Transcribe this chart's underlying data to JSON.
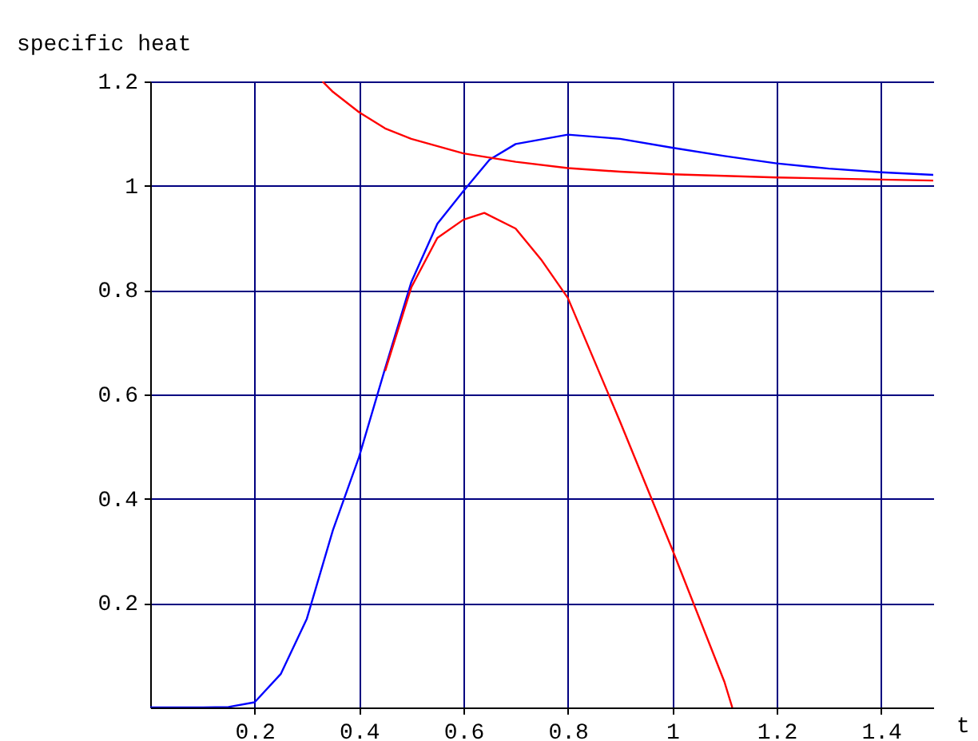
{
  "chart_data": {
    "type": "line",
    "xlabel": "t",
    "ylabel": "specific heat",
    "xlim": [
      0,
      1.5
    ],
    "ylim": [
      0,
      1.2
    ],
    "xticks": [
      0.2,
      0.4,
      0.6,
      0.8,
      {
        "value": 1,
        "label": "1"
      },
      1.2,
      1.4
    ],
    "yticks": [
      0.2,
      0.4,
      0.6,
      0.8,
      {
        "value": 1,
        "label": "1"
      },
      1.2
    ],
    "grid": true,
    "line_style": "solid",
    "series": [
      {
        "color": "#0000ff",
        "x": [
          0,
          0.1,
          0.15,
          0.2,
          0.25,
          0.3,
          0.35,
          0.4,
          0.45,
          0.5,
          0.55,
          0.6,
          0.65,
          0.7,
          0.8,
          0.9,
          1,
          1.1,
          1.2,
          1.3,
          1.4,
          1.5
        ],
        "values": [
          0,
          0,
          0.001,
          0.01,
          0.064,
          0.17,
          0.34,
          0.48,
          0.65,
          0.815,
          0.927,
          0.99,
          1.05,
          1.08,
          1.098,
          1.09,
          1.073,
          1.057,
          1.043,
          1.033,
          1.026,
          1.021
        ]
      },
      {
        "color": "#ff0000",
        "x": [
          0.45,
          0.5,
          0.55,
          0.6,
          0.64,
          0.7,
          0.75,
          0.8,
          0.9,
          1,
          1.1,
          1.115
        ],
        "values": [
          0.645,
          0.805,
          0.9,
          0.935,
          0.948,
          0.918,
          0.857,
          0.785,
          0.548,
          0.303,
          0.049,
          0
        ]
      },
      {
        "color": "#ff0000",
        "x": [
          0.33,
          0.35,
          0.4,
          0.45,
          0.5,
          0.6,
          0.7,
          0.8,
          0.9,
          1,
          1.2,
          1.4,
          1.5
        ],
        "values": [
          1.2,
          1.18,
          1.141,
          1.11,
          1.09,
          1.062,
          1.046,
          1.034,
          1.027,
          1.022,
          1.016,
          1.012,
          1.01
        ]
      }
    ]
  }
}
